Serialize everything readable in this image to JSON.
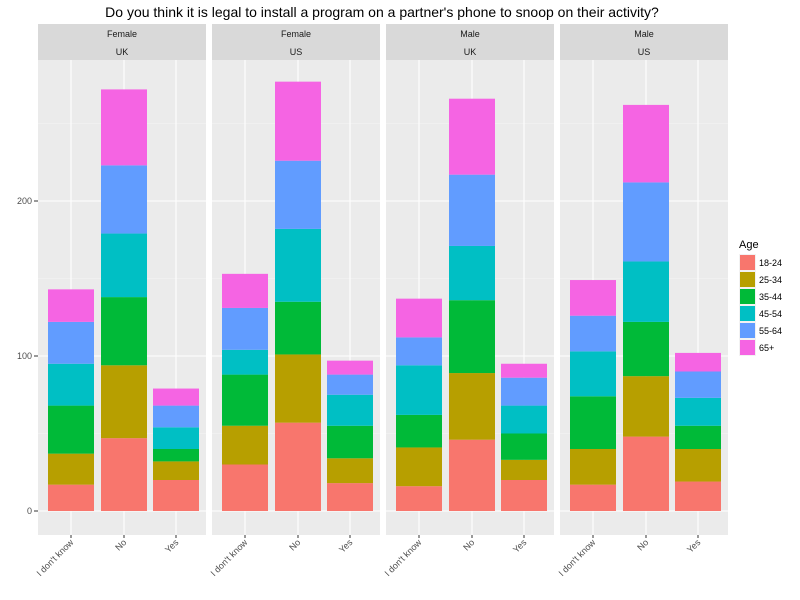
{
  "chart_data": {
    "type": "bar",
    "stacked": true,
    "title": "Do you think it is legal to install a program on a partner's phone to snoop on their activity?",
    "xlabel": "",
    "ylabel": "",
    "ylim": [
      0,
      290
    ],
    "yticks": [
      0,
      100,
      200
    ],
    "grid": true,
    "categories": [
      "I don't know",
      "No",
      "Yes"
    ],
    "legend": {
      "title": "Age",
      "placement": "right",
      "entries": [
        "18-24",
        "25-34",
        "35-44",
        "45-54",
        "55-64",
        "65+"
      ],
      "colors": [
        "#F8766D",
        "#B79F00",
        "#00BA38",
        "#00BFC4",
        "#619CFF",
        "#F564E3"
      ]
    },
    "panels": [
      {
        "strip_top": "Female",
        "strip_bottom": "UK",
        "series": [
          {
            "name": "18-24",
            "values": [
              17,
              47,
              20
            ]
          },
          {
            "name": "25-34",
            "values": [
              20,
              47,
              12
            ]
          },
          {
            "name": "35-44",
            "values": [
              31,
              44,
              8
            ]
          },
          {
            "name": "45-54",
            "values": [
              27,
              41,
              14
            ]
          },
          {
            "name": "55-64",
            "values": [
              27,
              44,
              14
            ]
          },
          {
            "name": "65+",
            "values": [
              21,
              49,
              11
            ]
          }
        ]
      },
      {
        "strip_top": "Female",
        "strip_bottom": "US",
        "series": [
          {
            "name": "18-24",
            "values": [
              30,
              57,
              18
            ]
          },
          {
            "name": "25-34",
            "values": [
              25,
              44,
              16
            ]
          },
          {
            "name": "35-44",
            "values": [
              33,
              34,
              21
            ]
          },
          {
            "name": "45-54",
            "values": [
              16,
              47,
              20
            ]
          },
          {
            "name": "55-64",
            "values": [
              27,
              44,
              13
            ]
          },
          {
            "name": "65+",
            "values": [
              22,
              51,
              9
            ]
          }
        ]
      },
      {
        "strip_top": "Male",
        "strip_bottom": "UK",
        "series": [
          {
            "name": "18-24",
            "values": [
              16,
              46,
              20
            ]
          },
          {
            "name": "25-34",
            "values": [
              25,
              43,
              13
            ]
          },
          {
            "name": "35-44",
            "values": [
              21,
              47,
              17
            ]
          },
          {
            "name": "45-54",
            "values": [
              32,
              35,
              18
            ]
          },
          {
            "name": "55-64",
            "values": [
              18,
              46,
              18
            ]
          },
          {
            "name": "65+",
            "values": [
              25,
              49,
              9
            ]
          }
        ]
      },
      {
        "strip_top": "Male",
        "strip_bottom": "US",
        "series": [
          {
            "name": "18-24",
            "values": [
              17,
              48,
              19
            ]
          },
          {
            "name": "25-34",
            "values": [
              23,
              39,
              21
            ]
          },
          {
            "name": "35-44",
            "values": [
              34,
              35,
              15
            ]
          },
          {
            "name": "45-54",
            "values": [
              29,
              39,
              18
            ]
          },
          {
            "name": "55-64",
            "values": [
              23,
              51,
              17
            ]
          },
          {
            "name": "65+",
            "values": [
              23,
              50,
              12
            ]
          }
        ]
      }
    ]
  }
}
